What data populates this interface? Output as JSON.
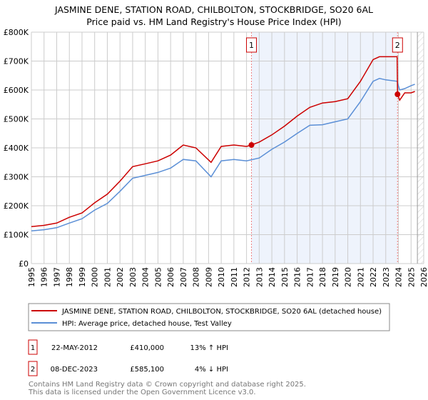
{
  "chart_data": {
    "type": "line",
    "title": "JASMINE DENE, STATION ROAD, CHILBOLTON, STOCKBRIDGE, SO20 6AL",
    "subtitle": "Price paid vs. HM Land Registry's House Price Index (HPI)",
    "xlim": [
      1995,
      2026
    ],
    "ylim": [
      0,
      800000
    ],
    "x_ticks": [
      "1995",
      "1996",
      "1997",
      "1998",
      "1999",
      "2000",
      "2001",
      "2002",
      "2003",
      "2004",
      "2005",
      "2006",
      "2007",
      "2008",
      "2009",
      "2010",
      "2011",
      "2012",
      "2013",
      "2014",
      "2015",
      "2016",
      "2017",
      "2018",
      "2019",
      "2020",
      "2021",
      "2022",
      "2023",
      "2024",
      "2025",
      "2026"
    ],
    "y_ticks": [
      {
        "v": 0,
        "label": "£0"
      },
      {
        "v": 100000,
        "label": "£100K"
      },
      {
        "v": 200000,
        "label": "£200K"
      },
      {
        "v": 300000,
        "label": "£300K"
      },
      {
        "v": 400000,
        "label": "£400K"
      },
      {
        "v": 500000,
        "label": "£500K"
      },
      {
        "v": 600000,
        "label": "£600K"
      },
      {
        "v": 700000,
        "label": "£700K"
      },
      {
        "v": 800000,
        "label": "£800K"
      }
    ],
    "grid": true,
    "series": [
      {
        "name": "JASMINE DENE, STATION ROAD, CHILBOLTON, STOCKBRIDGE, SO20 6AL (detached house)",
        "color": "#cc0000",
        "x": [
          1995,
          1996,
          1997,
          1998,
          1999,
          2000,
          2001,
          2002,
          2003,
          2004,
          2005,
          2006,
          2007,
          2008,
          2009.2,
          2010,
          2011,
          2012,
          2012.39,
          2013,
          2014,
          2015,
          2016,
          2017,
          2018,
          2019,
          2020,
          2021,
          2022,
          2022.5,
          2023,
          2023.9,
          2023.93,
          2024.1,
          2024.5,
          2025,
          2025.3
        ],
        "y": [
          128000,
          132000,
          140000,
          160000,
          175000,
          210000,
          240000,
          285000,
          335000,
          345000,
          355000,
          375000,
          410000,
          400000,
          350000,
          405000,
          410000,
          405000,
          410000,
          420000,
          445000,
          475000,
          510000,
          540000,
          555000,
          560000,
          570000,
          630000,
          705000,
          715000,
          715000,
          715000,
          585100,
          565000,
          590000,
          590000,
          595000
        ]
      },
      {
        "name": "HPI: Average price, detached house, Test Valley",
        "color": "#5b8fd6",
        "x": [
          1995,
          1996,
          1997,
          1998,
          1999,
          2000,
          2001,
          2002,
          2003,
          2004,
          2005,
          2006,
          2007,
          2008,
          2009.2,
          2010,
          2011,
          2012,
          2013,
          2014,
          2015,
          2016,
          2017,
          2018,
          2019,
          2020,
          2021,
          2022,
          2022.5,
          2023,
          2023.9,
          2024.1,
          2024.5,
          2025,
          2025.3
        ],
        "y": [
          113000,
          117000,
          124000,
          140000,
          155000,
          185000,
          208000,
          250000,
          295000,
          305000,
          315000,
          330000,
          360000,
          355000,
          300000,
          355000,
          360000,
          355000,
          365000,
          395000,
          420000,
          450000,
          478000,
          480000,
          490000,
          500000,
          560000,
          630000,
          640000,
          635000,
          630000,
          600000,
          605000,
          615000,
          620000
        ]
      }
    ],
    "markers": [
      {
        "label": "1",
        "x": 2012.39,
        "y": 410000
      },
      {
        "label": "2",
        "x": 2023.93,
        "y": 585100
      }
    ],
    "shaded_range": [
      2012.39,
      2023.93
    ],
    "forecast_from": 2025.5
  },
  "legend": {
    "items": [
      "JASMINE DENE, STATION ROAD, CHILBOLTON, STOCKBRIDGE, SO20 6AL (detached house)",
      "HPI: Average price, detached house, Test Valley"
    ]
  },
  "transactions": [
    {
      "num": "1",
      "date": "22-MAY-2012",
      "price": "£410,000",
      "hpi": "13% ↑ HPI"
    },
    {
      "num": "2",
      "date": "08-DEC-2023",
      "price": "£585,100",
      "hpi": "4% ↓ HPI"
    }
  ],
  "footer": [
    "Contains HM Land Registry data © Crown copyright and database right 2025.",
    "This data is licensed under the Open Government Licence v3.0."
  ]
}
